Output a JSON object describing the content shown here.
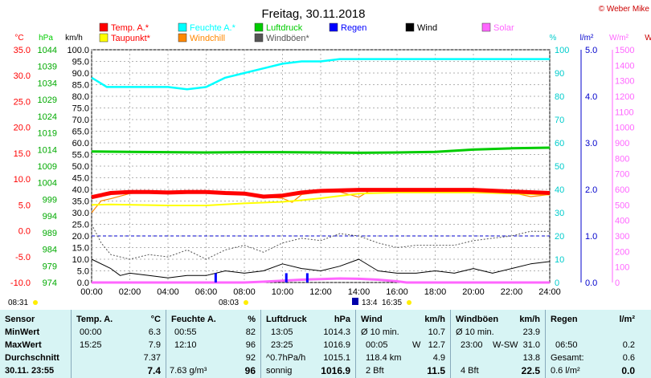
{
  "title": "Freitag, 30.11.2018",
  "copyright": "© Weber Mike",
  "legend": [
    {
      "label": "Temp. A.*",
      "color": "#ff0000"
    },
    {
      "label": "Feuchte A.*",
      "color": "#00ffff"
    },
    {
      "label": "Luftdruck",
      "color": "#00cc00"
    },
    {
      "label": "Regen",
      "color": "#0000ff"
    },
    {
      "label": "Wind",
      "color": "#000000"
    },
    {
      "label": "Solar",
      "color": "#ff66ff"
    },
    {
      "label": "Taupunkt*",
      "color": "#ffff00"
    },
    {
      "label": "Windchill",
      "color": "#ff8800"
    },
    {
      "label": "Windböen*",
      "color": "#555555"
    }
  ],
  "axis_units": {
    "temp": "°C",
    "pressure": "hPa",
    "wind": "km/h",
    "humidity": "%",
    "rain": "l/m²",
    "solar": "W/m²",
    "extra": "W"
  },
  "axis_ticks": {
    "temp": [
      "35.0",
      "30.0",
      "25.0",
      "20.0",
      "15.0",
      "10.0",
      "5.0",
      "0.0",
      "-5.0",
      "-10.0"
    ],
    "pressure": [
      "1044",
      "1039",
      "1034",
      "1029",
      "1024",
      "1019",
      "1014",
      "1009",
      "1004",
      "999",
      "994",
      "989",
      "984",
      "979",
      "974"
    ],
    "wind": [
      "100.0",
      "95.0",
      "90.0",
      "85.0",
      "80.0",
      "75.0",
      "70.0",
      "65.0",
      "60.0",
      "55.0",
      "50.0",
      "45.0",
      "40.0",
      "35.0",
      "30.0",
      "25.0",
      "20.0",
      "15.0",
      "10.0",
      "5.0",
      "0.0"
    ],
    "humidity": [
      "100",
      "90",
      "80",
      "70",
      "60",
      "50",
      "40",
      "30",
      "20",
      "10",
      "0"
    ],
    "rain": [
      "5.0",
      "4.0",
      "3.0",
      "2.0",
      "1.0",
      "0.0"
    ],
    "solar": [
      "1500",
      "1400",
      "1300",
      "1200",
      "1100",
      "1000",
      "900",
      "800",
      "700",
      "600",
      "500",
      "400",
      "300",
      "200",
      "100",
      "0"
    ],
    "time": [
      "00:00",
      "02:00",
      "04:00",
      "06:00",
      "08:00",
      "10:00",
      "12:00",
      "14:00",
      "16:00",
      "18:00",
      "20:00",
      "22:00",
      "24:00"
    ]
  },
  "sun_markers": {
    "sunrise": "08:03",
    "sunset": "16:35",
    "left": "08:31",
    "moon": "13:4"
  },
  "chart_data": {
    "type": "line",
    "x_unit": "hour",
    "xlim": [
      0,
      24
    ],
    "series": [
      {
        "name": "Temp. A.*",
        "axis": "temp",
        "color": "#ff0000",
        "points": [
          [
            0,
            6.5
          ],
          [
            1,
            7.3
          ],
          [
            2,
            7.5
          ],
          [
            3,
            7.5
          ],
          [
            4,
            7.4
          ],
          [
            5,
            7.5
          ],
          [
            6,
            7.5
          ],
          [
            7,
            7.3
          ],
          [
            8,
            7.2
          ],
          [
            9,
            6.6
          ],
          [
            10,
            6.8
          ],
          [
            11,
            7.4
          ],
          [
            12,
            7.7
          ],
          [
            14,
            7.9
          ],
          [
            16,
            7.9
          ],
          [
            18,
            7.9
          ],
          [
            20,
            7.9
          ],
          [
            22,
            7.6
          ],
          [
            24,
            7.3
          ]
        ]
      },
      {
        "name": "Taupunkt*",
        "axis": "temp",
        "color": "#ffff00",
        "points": [
          [
            0,
            5.0
          ],
          [
            1,
            5.1
          ],
          [
            4,
            4.9
          ],
          [
            6,
            4.9
          ],
          [
            8,
            5.3
          ],
          [
            10,
            5.6
          ],
          [
            11,
            5.9
          ],
          [
            12,
            6.3
          ],
          [
            14,
            7.2
          ],
          [
            16,
            7.4
          ],
          [
            18,
            7.4
          ],
          [
            20,
            7.4
          ],
          [
            22,
            7.2
          ],
          [
            24,
            7.0
          ]
        ]
      },
      {
        "name": "Windchill",
        "axis": "temp",
        "color": "#ff8800",
        "points": [
          [
            0,
            3.5
          ],
          [
            0.5,
            5.8
          ],
          [
            1,
            6.2
          ],
          [
            2,
            7.2
          ],
          [
            3,
            7.4
          ],
          [
            4,
            7.4
          ],
          [
            6,
            7.4
          ],
          [
            8,
            7.2
          ],
          [
            9,
            6.6
          ],
          [
            10,
            6.3
          ],
          [
            10.5,
            5.5
          ],
          [
            11,
            7.0
          ],
          [
            12,
            7.5
          ],
          [
            13,
            7.5
          ],
          [
            14,
            6.5
          ],
          [
            14.5,
            7.6
          ],
          [
            16,
            7.8
          ],
          [
            18,
            7.8
          ],
          [
            20,
            7.8
          ],
          [
            22,
            7.4
          ],
          [
            23,
            6.6
          ],
          [
            24,
            7.0
          ]
        ]
      },
      {
        "name": "Feuchte A.*",
        "axis": "humidity",
        "color": "#00ffff",
        "points": [
          [
            0,
            88
          ],
          [
            0.8,
            84
          ],
          [
            2,
            84
          ],
          [
            4,
            84
          ],
          [
            5,
            83
          ],
          [
            6,
            84
          ],
          [
            7,
            88
          ],
          [
            8,
            90
          ],
          [
            9,
            92
          ],
          [
            10,
            94
          ],
          [
            11,
            95
          ],
          [
            12,
            95
          ],
          [
            13,
            96
          ],
          [
            14,
            96
          ],
          [
            16,
            96
          ],
          [
            18,
            96
          ],
          [
            20,
            96
          ],
          [
            22,
            96
          ],
          [
            24,
            96
          ]
        ]
      },
      {
        "name": "Luftdruck",
        "axis": "pressure",
        "color": "#00cc00",
        "points": [
          [
            0,
            1014.8
          ],
          [
            2,
            1014.7
          ],
          [
            4,
            1014.6
          ],
          [
            6,
            1014.5
          ],
          [
            8,
            1014.6
          ],
          [
            10,
            1014.6
          ],
          [
            12,
            1014.5
          ],
          [
            14,
            1014.4
          ],
          [
            16,
            1014.5
          ],
          [
            18,
            1014.7
          ],
          [
            20,
            1015.4
          ],
          [
            22,
            1015.8
          ],
          [
            24,
            1016.0
          ]
        ]
      },
      {
        "name": "Wind",
        "axis": "wind",
        "color": "#000000",
        "points": [
          [
            0,
            10
          ],
          [
            1,
            6
          ],
          [
            1.5,
            3
          ],
          [
            2,
            4
          ],
          [
            3,
            3
          ],
          [
            4,
            2
          ],
          [
            5,
            3
          ],
          [
            6,
            3
          ],
          [
            7,
            5
          ],
          [
            8,
            4
          ],
          [
            9,
            5
          ],
          [
            10,
            8
          ],
          [
            11,
            6
          ],
          [
            12,
            5
          ],
          [
            13,
            7
          ],
          [
            14,
            10
          ],
          [
            15,
            5
          ],
          [
            16,
            4
          ],
          [
            17,
            4
          ],
          [
            18,
            5
          ],
          [
            19,
            4
          ],
          [
            20,
            6
          ],
          [
            21,
            4
          ],
          [
            22,
            6
          ],
          [
            23,
            8
          ],
          [
            24,
            9
          ]
        ]
      },
      {
        "name": "Windböen*",
        "axis": "wind",
        "color": "#555555",
        "points": [
          [
            0,
            25
          ],
          [
            0.5,
            17
          ],
          [
            1,
            12
          ],
          [
            2,
            10
          ],
          [
            3,
            12
          ],
          [
            4,
            11
          ],
          [
            5,
            14
          ],
          [
            6,
            10
          ],
          [
            7,
            14
          ],
          [
            8,
            16
          ],
          [
            9,
            13
          ],
          [
            10,
            17
          ],
          [
            11,
            19
          ],
          [
            12,
            18
          ],
          [
            13,
            21
          ],
          [
            14,
            20
          ],
          [
            15,
            17
          ],
          [
            16,
            15
          ],
          [
            17,
            16
          ],
          [
            18,
            16
          ],
          [
            19,
            16
          ],
          [
            20,
            18
          ],
          [
            21,
            19
          ],
          [
            22,
            20
          ],
          [
            23,
            22
          ],
          [
            24,
            22
          ]
        ]
      },
      {
        "name": "Solar",
        "axis": "solar",
        "color": "#ff66ff",
        "points": [
          [
            0,
            0
          ],
          [
            8,
            0
          ],
          [
            9,
            5
          ],
          [
            10,
            12
          ],
          [
            11,
            18
          ],
          [
            12,
            22
          ],
          [
            13,
            26
          ],
          [
            14,
            24
          ],
          [
            15,
            18
          ],
          [
            16,
            8
          ],
          [
            16.5,
            0
          ],
          [
            24,
            0
          ]
        ]
      }
    ],
    "rain_events": [
      {
        "x": 6.5,
        "value": 0.2
      },
      {
        "x": 10.2,
        "value": 0.2
      },
      {
        "x": 11.3,
        "value": 0.2
      }
    ]
  },
  "stats": {
    "sensor": {
      "header": "Sensor",
      "rows": [
        "MinWert",
        "MaxWert",
        "Durchschnitt",
        "30.11. 23:55"
      ]
    },
    "temp": {
      "header": "Temp. A.",
      "unit": "°C",
      "rows": [
        [
          "00:00",
          "6.3"
        ],
        [
          "15:25",
          "7.9"
        ],
        [
          "",
          "7.37"
        ],
        [
          "",
          "7.4"
        ]
      ]
    },
    "humidity": {
      "header": "Feuchte A.",
      "unit": "%",
      "rows": [
        [
          "00:55",
          "82"
        ],
        [
          "12:10",
          "96"
        ],
        [
          "",
          "92"
        ],
        [
          "7.63 g/m³",
          "96"
        ]
      ]
    },
    "pressure": {
      "header": "Luftdruck",
      "unit": "hPa",
      "rows": [
        [
          "13:05",
          "1014.3"
        ],
        [
          "23:25",
          "1016.9"
        ],
        [
          "^0.7hPa/h",
          "1015.1"
        ],
        [
          "sonnig",
          "1016.9"
        ]
      ]
    },
    "wind": {
      "header": "Wind",
      "unit": "km/h",
      "rows": [
        [
          "Ø 10 min.",
          "",
          "10.7"
        ],
        [
          "00:05",
          "W",
          "12.7"
        ],
        [
          "118.4 km",
          "",
          "4.9"
        ],
        [
          "2 Bft",
          "",
          "11.5"
        ]
      ]
    },
    "gust": {
      "header": "Windböen",
      "unit": "km/h",
      "rows": [
        [
          "Ø 10 min.",
          "",
          "23.9"
        ],
        [
          "23:00",
          "W-SW",
          "31.0"
        ],
        [
          "",
          "",
          "13.8"
        ],
        [
          "4 Bft",
          "",
          "22.5"
        ]
      ]
    },
    "rain": {
      "header": "Regen",
      "unit": "l/m²",
      "rows": [
        [
          "",
          "",
          ""
        ],
        [
          "06:50",
          "",
          "0.2"
        ],
        [
          "",
          "Gesamt:",
          "0.6"
        ],
        [
          "0.6 l/m²",
          "",
          "0.0"
        ]
      ]
    }
  }
}
